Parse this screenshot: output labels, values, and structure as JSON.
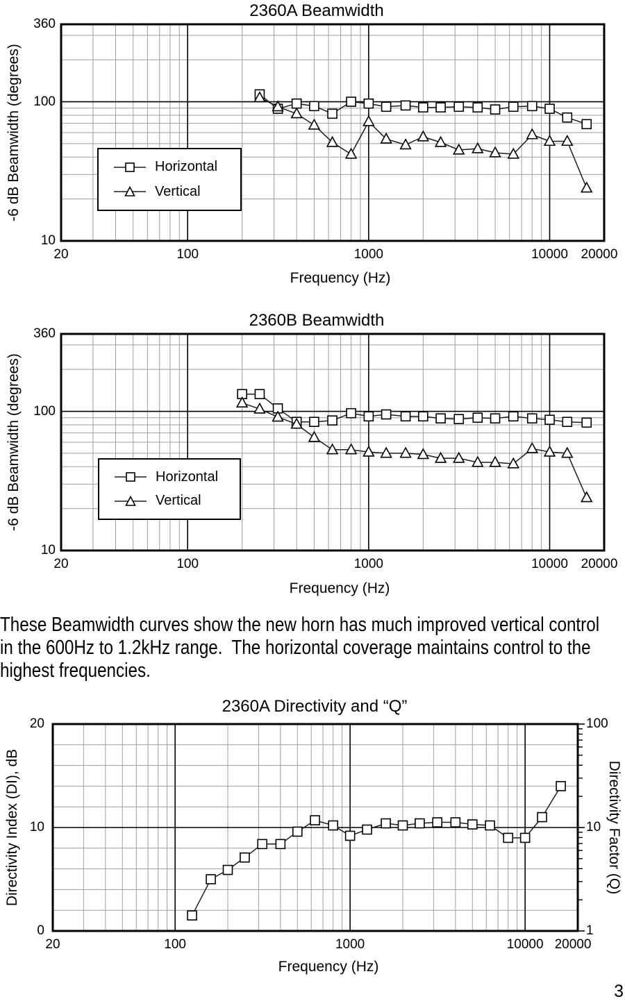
{
  "page_number": "3",
  "paragraph": {
    "lines": [
      "These Beamwidth curves show the new horn has much improved vertical control",
      "in the 600Hz to 1.2kHz range.  The horizontal coverage maintains control to the",
      "highest frequencies."
    ]
  },
  "chart_data": [
    {
      "id": "2360a-beamwidth",
      "type": "line",
      "title": "2360A Beamwidth",
      "xlabel": "Frequency (Hz)",
      "ylabel": "-6 dB Beamwidth (degrees)",
      "x_scale": "log",
      "y_scale": "log",
      "xlim": [
        20,
        20000
      ],
      "ylim": [
        10,
        360
      ],
      "x_tick_values": [
        20,
        100,
        1000,
        10000,
        20000
      ],
      "x_tick_labels": [
        "20",
        "100",
        "1000",
        "10000",
        "20000"
      ],
      "y_tick_values": [
        360,
        100,
        10
      ],
      "y_tick_labels": [
        "360",
        "100",
        "10"
      ],
      "grid": true,
      "legend_position": "lower-left",
      "frequencies_hz": [
        250,
        315,
        400,
        500,
        630,
        800,
        1000,
        1250,
        1600,
        2000,
        2500,
        3150,
        4000,
        5000,
        6300,
        8000,
        10000,
        12500,
        16000
      ],
      "series": [
        {
          "name": "Horizontal",
          "marker": "square",
          "values": [
            113,
            89,
            97,
            93,
            82,
            100,
            97,
            92,
            94,
            91,
            91,
            92,
            91,
            88,
            92,
            93,
            89,
            77,
            69
          ]
        },
        {
          "name": "Vertical",
          "marker": "triangle",
          "values": [
            107,
            92,
            82,
            68,
            51,
            42,
            72,
            54,
            49,
            56,
            51,
            45,
            46,
            43,
            42,
            58,
            52,
            52,
            24
          ]
        }
      ]
    },
    {
      "id": "2360b-beamwidth",
      "type": "line",
      "title": "2360B Beamwidth",
      "xlabel": "Frequency (Hz)",
      "ylabel": "-6 dB Beamwidth (degrees)",
      "x_scale": "log",
      "y_scale": "log",
      "xlim": [
        20,
        20000
      ],
      "ylim": [
        10,
        360
      ],
      "x_tick_values": [
        20,
        100,
        1000,
        10000,
        20000
      ],
      "x_tick_labels": [
        "20",
        "100",
        "1000",
        "10000",
        "20000"
      ],
      "y_tick_values": [
        360,
        100,
        10
      ],
      "y_tick_labels": [
        "360",
        "100",
        "10"
      ],
      "grid": true,
      "legend_position": "lower-left",
      "frequencies_hz": [
        200,
        250,
        315,
        400,
        500,
        630,
        800,
        1000,
        1250,
        1600,
        2000,
        2500,
        3150,
        4000,
        5000,
        6300,
        8000,
        10000,
        12500,
        16000
      ],
      "series": [
        {
          "name": "Horizontal",
          "marker": "square",
          "values": [
            133,
            133,
            105,
            84,
            84,
            86,
            97,
            92,
            95,
            92,
            92,
            89,
            88,
            90,
            89,
            92,
            89,
            87,
            84,
            83
          ]
        },
        {
          "name": "Vertical",
          "marker": "triangle",
          "values": [
            115,
            104,
            91,
            81,
            65,
            53,
            53,
            51,
            50,
            50,
            49,
            46,
            46,
            43,
            43,
            42,
            54,
            51,
            50,
            24
          ]
        }
      ]
    },
    {
      "id": "2360a-directivity-and-q",
      "type": "line",
      "title": "2360A Directivity and “Q”",
      "xlabel": "Frequency (Hz)",
      "ylabel_left": "Directivity Index (DI), dB",
      "ylabel_right": "Directivity Factor (Q)",
      "x_scale": "log",
      "y_scale": "linear",
      "xlim": [
        20,
        20000
      ],
      "ylim": [
        0,
        20
      ],
      "x_tick_values": [
        20,
        100,
        1000,
        10000,
        20000
      ],
      "x_tick_labels": [
        "20",
        "100",
        "1000",
        "10000",
        "20000"
      ],
      "y_tick_values": [
        20,
        10,
        0
      ],
      "y_tick_labels": [
        "20",
        "10",
        "0"
      ],
      "right_axis": {
        "scale": "log",
        "lim": [
          1,
          100
        ],
        "tick_values": [
          100,
          10,
          1
        ],
        "tick_labels": [
          "100",
          "10",
          "1"
        ]
      },
      "grid": true,
      "frequencies_hz": [
        125,
        160,
        200,
        250,
        315,
        400,
        500,
        630,
        800,
        1000,
        1250,
        1600,
        2000,
        2500,
        3150,
        4000,
        5000,
        6300,
        8000,
        10000,
        12500,
        16000
      ],
      "series": [
        {
          "name": "Directivity Index (DI)",
          "marker": "square",
          "values": [
            1.5,
            5.0,
            5.9,
            7.1,
            8.4,
            8.4,
            9.6,
            10.7,
            10.2,
            9.2,
            9.8,
            10.4,
            10.2,
            10.4,
            10.5,
            10.5,
            10.3,
            10.2,
            9.0,
            9.0,
            11.0,
            14.0
          ]
        }
      ]
    }
  ]
}
